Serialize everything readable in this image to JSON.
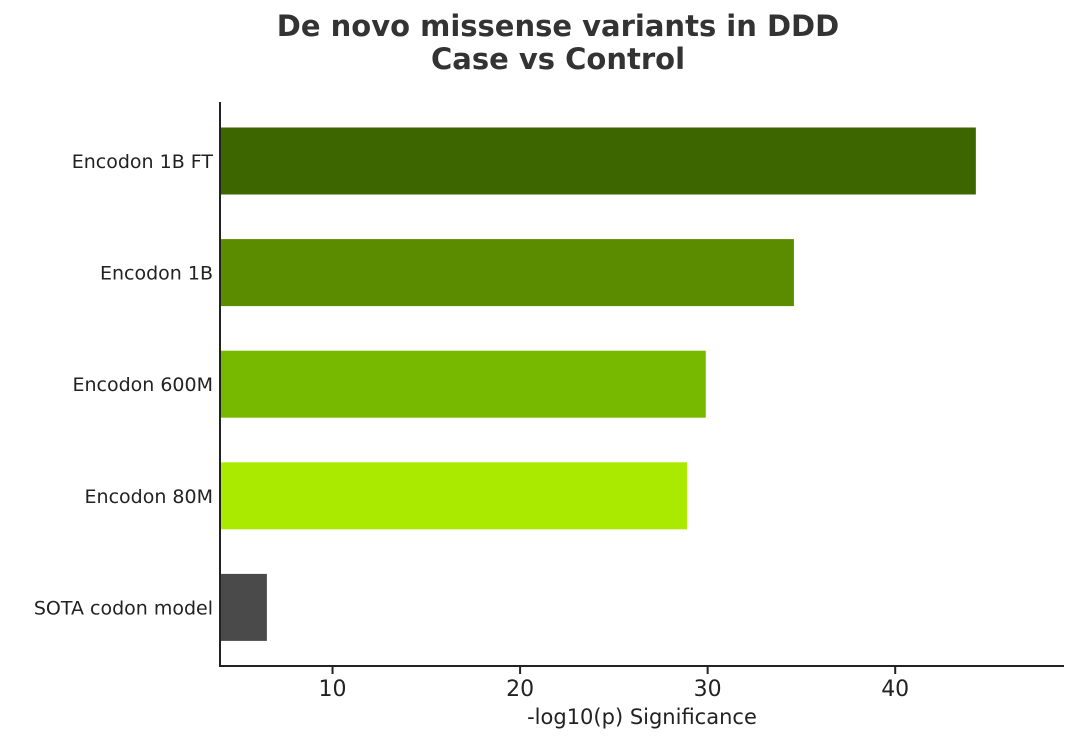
{
  "chart_data": {
    "type": "bar",
    "orientation": "horizontal",
    "title": [
      "De novo missense variants in DDD",
      "Case vs Control"
    ],
    "xlabel": "-log10(p) Significance",
    "ylabel": "",
    "categories": [
      "Encodon 1B FT",
      "Encodon 1B",
      "Encodon 600M",
      "Encodon 80M",
      "SOTA codon model"
    ],
    "values": [
      44.3,
      34.6,
      29.9,
      28.9,
      6.5
    ],
    "colors": [
      "#3d6600",
      "#5b8c00",
      "#77b800",
      "#aaea00",
      "#4a4a4a"
    ],
    "xlim": [
      4,
      49
    ],
    "xticks": [
      10,
      20,
      30,
      40
    ],
    "grid": false,
    "legend": "none"
  }
}
